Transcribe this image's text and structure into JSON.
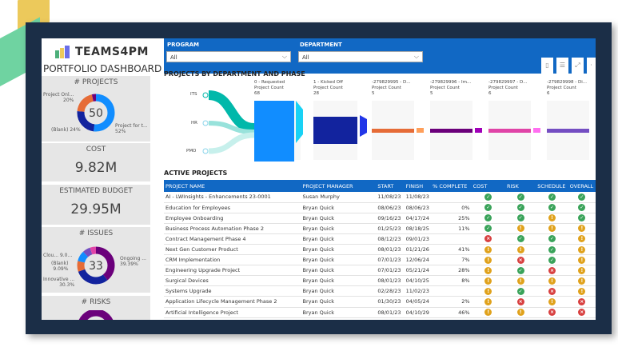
{
  "brand": {
    "name": "TEAMS4PM",
    "subtitle": "PORTFOLIO DASHBOARD"
  },
  "colors": {
    "frame": "#1b2e47",
    "accent": "#1168c4",
    "green": "#3aa35a",
    "yellow": "#e0a21c",
    "red": "#d84040"
  },
  "kpis": {
    "projects": {
      "title": "# PROJECTS",
      "value": "50",
      "labels": [
        {
          "text": "Project Onl...",
          "pct": "20%"
        },
        {
          "text": "(Blank)",
          "pct": "24%"
        },
        {
          "text": "Project for t...",
          "pct": "52%"
        }
      ]
    },
    "cost": {
      "title": "COST",
      "value": "9.82M"
    },
    "budget": {
      "title": "ESTIMATED BUDGET",
      "value": "29.95M"
    },
    "issues": {
      "title": "# ISSUES",
      "value": "33",
      "labels": [
        {
          "text": "Clou... 9.0..."
        },
        {
          "text": "(Blank)",
          "pct": "9.09%"
        },
        {
          "text": "Innovative ...",
          "pct": "30.3%"
        },
        {
          "text": "Ongoing ...",
          "pct": "39.39%"
        }
      ]
    },
    "risks": {
      "title": "# RISKS"
    }
  },
  "filters": {
    "program": {
      "label": "PROGRAM",
      "value": "All"
    },
    "department": {
      "label": "DEPARTMENT",
      "value": "All"
    }
  },
  "toolbar": [
    "copy-icon",
    "filter-icon",
    "expand-icon"
  ],
  "funnel": {
    "title": "PROJECTS BY DEPARTMENT AND PHASE",
    "departments": [
      "ITS",
      "HR",
      "PMO"
    ],
    "phases": [
      {
        "name": "0 - Requested",
        "metric": "Project Count",
        "value": "68",
        "color": "#118dff"
      },
      {
        "name": "1 - Kicked Off",
        "metric": "Project Count",
        "value": "28",
        "color": "#12239e"
      },
      {
        "name": "-279829995 - D...",
        "metric": "Project Count",
        "value": "5",
        "color": "#e66c37"
      },
      {
        "name": "-279829996 - Im...",
        "metric": "Project Count",
        "value": "5",
        "color": "#6b007b"
      },
      {
        "name": "-279829997 - D...",
        "metric": "Project Count",
        "value": "6",
        "color": "#e044a7"
      },
      {
        "name": "-279829998 - Di...",
        "metric": "Project Count",
        "value": "6",
        "color": "#744ec2"
      }
    ]
  },
  "active": {
    "title": "ACTIVE PROJECTS",
    "columns": [
      "PROJECT NAME",
      "PROJECT MANAGER",
      "START",
      "FINISH",
      "% COMPLETE",
      "COST",
      "RISK",
      "SCHEDULE",
      "OVERALL"
    ],
    "rows": [
      [
        "AI - LWInsights - Enhancements 23-0001",
        "Susan Murphy",
        "11/08/23",
        "11/08/23",
        "",
        "g",
        "g",
        "g",
        "g"
      ],
      [
        "Education for Employees",
        "Bryan Quick",
        "08/06/23",
        "08/06/23",
        "0%",
        "g",
        "g",
        "g",
        "g"
      ],
      [
        "Employee Onboarding",
        "Bryan Quick",
        "09/16/23",
        "04/17/24",
        "25%",
        "g",
        "g",
        "y",
        "g"
      ],
      [
        "Business Process Automation Phase 2",
        "Bryan Quick",
        "01/25/23",
        "08/18/25",
        "11%",
        "g",
        "y",
        "y",
        "y"
      ],
      [
        "Contract Management Phase 4",
        "Bryan Quick",
        "08/12/23",
        "09/01/23",
        "",
        "r",
        "g",
        "g",
        "y"
      ],
      [
        "Next Gen Customer Product",
        "Bryan Quick",
        "08/01/23",
        "01/21/26",
        "41%",
        "y",
        "y",
        "g",
        "y"
      ],
      [
        "CRM Implementation",
        "Bryan Quick",
        "07/01/23",
        "12/06/24",
        "7%",
        "y",
        "r",
        "g",
        "y"
      ],
      [
        "Engineering Upgrade Project",
        "Bryan Quick",
        "07/01/23",
        "05/21/24",
        "28%",
        "y",
        "g",
        "r",
        "y"
      ],
      [
        "Surgical Devices",
        "Bryan Quick",
        "08/01/23",
        "04/10/25",
        "8%",
        "y",
        "y",
        "y",
        "y"
      ],
      [
        "Systems Upgrade",
        "Bryan Quick",
        "02/28/23",
        "11/02/23",
        "",
        "y",
        "g",
        "r",
        "y"
      ],
      [
        "Application Lifecycle Management Phase 2",
        "Bryan Quick",
        "01/30/23",
        "04/05/24",
        "2%",
        "y",
        "r",
        "y",
        "r"
      ],
      [
        "Artificial Intelligence Project",
        "Bryan Quick",
        "08/01/23",
        "04/10/29",
        "46%",
        "y",
        "y",
        "r",
        "r"
      ]
    ]
  }
}
